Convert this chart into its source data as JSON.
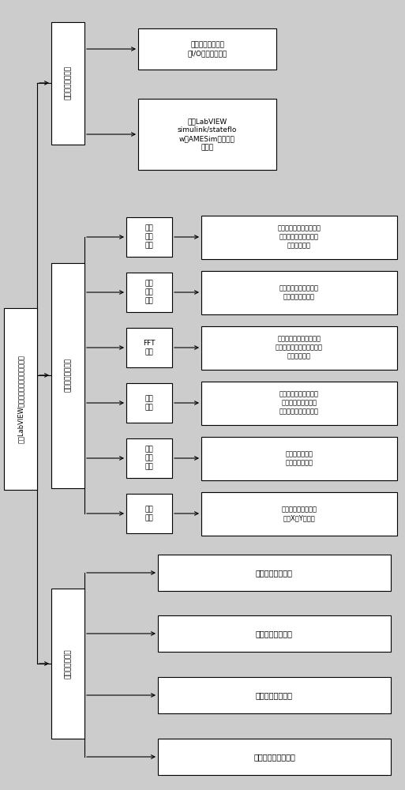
{
  "bg_color": "#cccccc",
  "box_fc": "#ffffff",
  "box_ec": "#000000",
  "lw": 0.8,
  "root_label": "基于LabVIEW的主动悬挂台架试验测控系统",
  "ctrl_module_label": "控制算法导入模块",
  "ctrl_child1_label": "硬件设备参数与硬\n件I/O配置定义系统",
  "ctrl_child2_label": "兼容LabVIEW\nsimulink/stateflo\nw、AMESim数以控制\n块模型",
  "mon_module_label": "测控系统监测模块",
  "mon_l2_labels": [
    "数据\n保存\n回放",
    "频率\n特性\n分析",
    "FFT\n频谱",
    "滤波\n设置",
    "信号\n参数\n测量",
    "波形\n浏览"
  ],
  "mon_l3_labels": [
    "生相应的实时数据数据及\n生成实验数据库报信息\n数据数据报报",
    "动车或员数据幅频特性\n动行数据幅频特性",
    "密谱信号功率谱密度、频\n密谱、功率谱密度、功率谱\n密度数数重量",
    "设置滤波数据类型、拓\n素、结构、处理上频\n率、数据存数据统参数",
    "测量中置量、均\n值、峰值统参数",
    "设置信号幅值中采采\n设置X，Y基准距"
  ],
  "sens_module_label": "传感器标定模块",
  "sens_labels": [
    "位尺传感器标定设",
    "速度传感器标定设",
    "位移传感器标定设",
    "力测量传感器标定设"
  ]
}
